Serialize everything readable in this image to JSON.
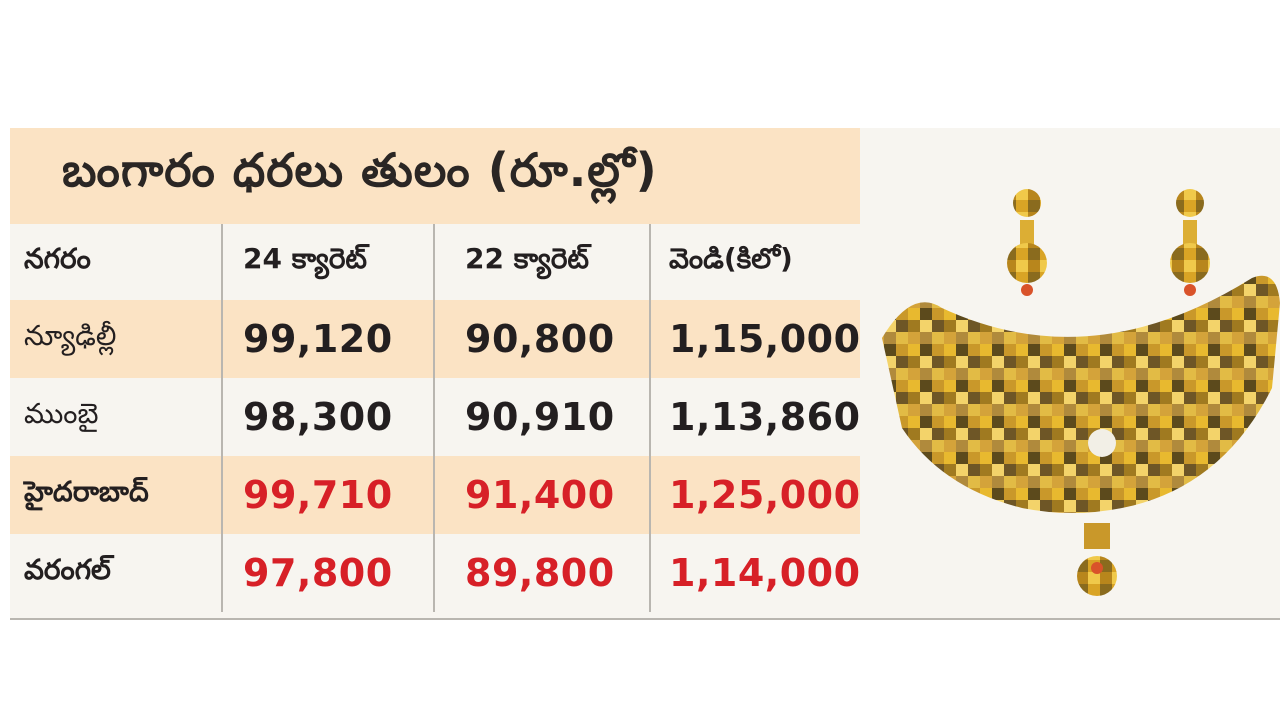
{
  "title": "బంగారం ధరలు తులం (రూ.ల్లో)",
  "headers": [
    "నగరం",
    "24 క్యారెట్",
    "22 క్యారెట్",
    "వెండి(కిలో)"
  ],
  "rows": [
    {
      "city": "న్యూఢిల్లీ",
      "k24": "99,120",
      "k22": "90,800",
      "silver": "1,15,000",
      "highlight": false
    },
    {
      "city": "ముంబై",
      "k24": "98,300",
      "k22": "90,910",
      "silver": "1,13,860",
      "highlight": false
    },
    {
      "city": "హైదరాబాద్",
      "k24": "99,710",
      "k22": "91,400",
      "silver": "1,25,000",
      "highlight": true
    },
    {
      "city": "వరంగల్",
      "k24": "97,800",
      "k22": "89,800",
      "silver": "1,14,000",
      "highlight": true
    }
  ],
  "colors": {
    "title_bg": "#fbe3c4",
    "panel_bg": "#f7f5f0",
    "highlight_text": "#d72027",
    "text": "#231f20"
  },
  "image": "gold-necklace-and-earrings-pixelated"
}
